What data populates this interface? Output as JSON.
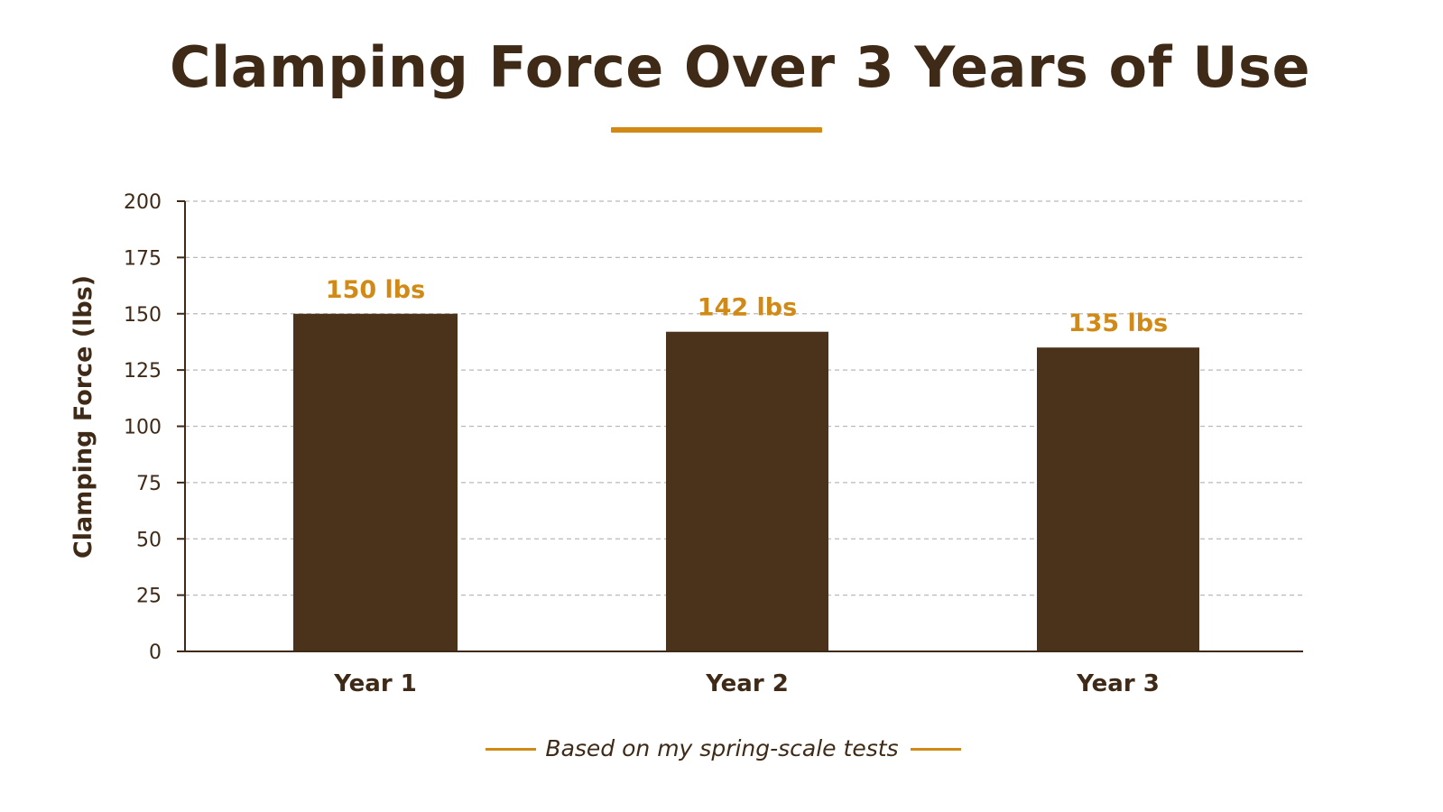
{
  "chart_data": {
    "type": "bar",
    "title": "Clamping Force Over 3 Years of Use",
    "categories": [
      "Year 1",
      "Year 2",
      "Year 3"
    ],
    "values": [
      150,
      142,
      135
    ],
    "data_labels": [
      "150 lbs",
      "142 lbs",
      "135 lbs"
    ],
    "xlabel": "",
    "ylabel": "Clamping Force (lbs)",
    "ylim": [
      0,
      200
    ],
    "yticks": [
      "0",
      "25",
      "50",
      "75",
      "100",
      "125",
      "150",
      "175",
      "200"
    ],
    "grid": "dashed horizontal",
    "legend": "none"
  },
  "footnote": "Based on my spring-scale tests",
  "colors": {
    "bar": "#4b331b",
    "accent": "#d18a16",
    "text": "#3f2a17",
    "grid": "#b9b9b9"
  }
}
